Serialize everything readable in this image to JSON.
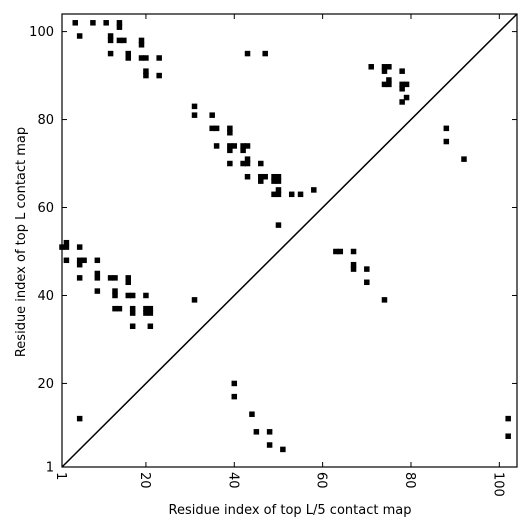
{
  "chart_data": {
    "type": "scatter",
    "xlabel": "Residue index of top L/5 contact map",
    "ylabel": "Residue index of top L contact map",
    "xlim": [
      1,
      104
    ],
    "ylim": [
      1,
      104
    ],
    "xticks": [
      1,
      20,
      40,
      60,
      80,
      100
    ],
    "yticks": [
      1,
      20,
      40,
      60,
      80,
      100
    ],
    "xtick_labels": [
      "1",
      "20",
      "40",
      "60",
      "80",
      "100"
    ],
    "ytick_labels": [
      "1",
      "20",
      "40",
      "60",
      "80",
      "100"
    ],
    "diagonal": true,
    "grid": false,
    "marker_color": "#000000",
    "series": [
      {
        "points": [
          [
            4,
            102
          ],
          [
            5,
            99
          ],
          [
            8,
            102
          ],
          [
            11,
            102
          ],
          [
            12,
            99
          ],
          [
            12,
            98
          ],
          [
            12,
            95
          ],
          [
            14,
            102
          ],
          [
            14,
            101
          ],
          [
            14,
            98
          ],
          [
            15,
            98
          ],
          [
            16,
            95
          ],
          [
            16,
            94
          ],
          [
            19,
            98
          ],
          [
            19,
            97
          ],
          [
            19,
            94
          ],
          [
            20,
            94
          ],
          [
            20,
            91
          ],
          [
            20,
            90
          ],
          [
            23,
            94
          ],
          [
            23,
            90
          ],
          [
            31,
            83
          ],
          [
            31,
            81
          ],
          [
            35,
            81
          ],
          [
            35,
            78
          ],
          [
            36,
            78
          ],
          [
            36,
            74
          ],
          [
            39,
            78
          ],
          [
            39,
            77
          ],
          [
            39,
            74
          ],
          [
            39,
            73
          ],
          [
            39,
            70
          ],
          [
            40,
            74
          ],
          [
            42,
            74
          ],
          [
            42,
            73
          ],
          [
            42,
            70
          ],
          [
            43,
            74
          ],
          [
            43,
            71
          ],
          [
            43,
            70
          ],
          [
            43,
            67
          ],
          [
            43,
            95
          ],
          [
            47,
            95
          ],
          [
            46,
            70
          ],
          [
            46,
            67
          ],
          [
            46,
            66
          ],
          [
            47,
            67
          ],
          [
            49,
            67
          ],
          [
            49,
            66
          ],
          [
            49,
            63
          ],
          [
            50,
            67
          ],
          [
            50,
            66
          ],
          [
            50,
            64
          ],
          [
            50,
            63
          ],
          [
            53,
            63
          ],
          [
            55,
            63
          ],
          [
            58,
            64
          ],
          [
            50,
            56
          ],
          [
            71,
            92
          ],
          [
            74,
            92
          ],
          [
            75,
            92
          ],
          [
            74,
            91
          ],
          [
            74,
            88
          ],
          [
            75,
            89
          ],
          [
            75,
            88
          ],
          [
            78,
            91
          ],
          [
            78,
            88
          ],
          [
            78,
            87
          ],
          [
            78,
            84
          ],
          [
            79,
            88
          ],
          [
            79,
            85
          ],
          [
            88,
            78
          ],
          [
            88,
            75
          ],
          [
            92,
            71
          ],
          [
            1,
            51
          ],
          [
            2,
            51
          ],
          [
            2,
            52
          ],
          [
            2,
            48
          ],
          [
            5,
            51
          ],
          [
            5,
            48
          ],
          [
            5,
            47
          ],
          [
            6,
            48
          ],
          [
            9,
            48
          ],
          [
            9,
            45
          ],
          [
            9,
            44
          ],
          [
            9,
            41
          ],
          [
            5,
            44
          ],
          [
            12,
            44
          ],
          [
            13,
            44
          ],
          [
            13,
            41
          ],
          [
            13,
            40
          ],
          [
            13,
            37
          ],
          [
            14,
            37
          ],
          [
            16,
            44
          ],
          [
            16,
            43
          ],
          [
            16,
            40
          ],
          [
            17,
            40
          ],
          [
            17,
            37
          ],
          [
            17,
            36
          ],
          [
            17,
            33
          ],
          [
            20,
            40
          ],
          [
            20,
            37
          ],
          [
            20,
            36
          ],
          [
            21,
            37
          ],
          [
            21,
            36
          ],
          [
            21,
            33
          ],
          [
            31,
            39
          ],
          [
            63,
            50
          ],
          [
            64,
            50
          ],
          [
            67,
            50
          ],
          [
            67,
            47
          ],
          [
            67,
            46
          ],
          [
            70,
            46
          ],
          [
            70,
            43
          ],
          [
            74,
            39
          ],
          [
            5,
            12
          ],
          [
            40,
            20
          ],
          [
            40,
            17
          ],
          [
            44,
            13
          ],
          [
            45,
            9
          ],
          [
            48,
            9
          ],
          [
            48,
            6
          ],
          [
            51,
            5
          ],
          [
            102,
            12
          ],
          [
            102,
            8
          ]
        ]
      }
    ]
  }
}
